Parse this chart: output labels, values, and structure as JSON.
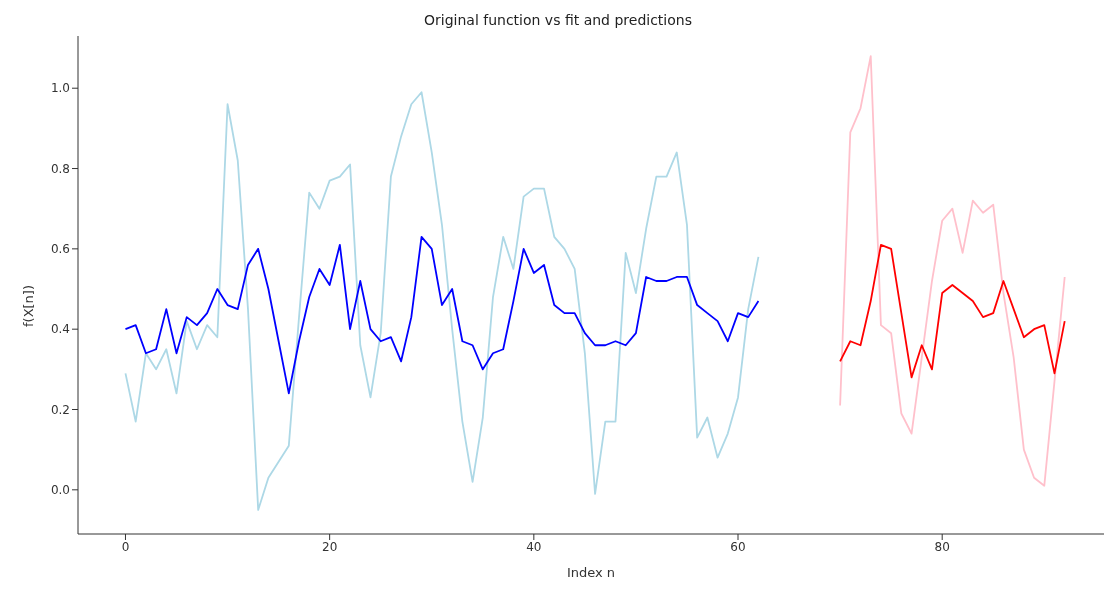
{
  "chart_data": {
    "type": "line",
    "title": "Original function vs fit and predictions",
    "xlabel": "Index n",
    "ylabel": "f(X[n])",
    "xlim": [
      -4.65,
      95.85
    ],
    "ylim": [
      -0.11,
      1.13
    ],
    "xticks": [
      0,
      20,
      40,
      60,
      80
    ],
    "yticks": [
      {
        "value": 0,
        "label": "0.0"
      },
      {
        "value": 0.2,
        "label": "0.2"
      },
      {
        "value": 0.4,
        "label": "0.4"
      },
      {
        "value": 0.6,
        "label": "0.6"
      },
      {
        "value": 0.8,
        "label": "0.8"
      },
      {
        "value": 1,
        "label": "1.0"
      }
    ],
    "grid": false,
    "legend": false,
    "marker": "none",
    "line_style": "solid",
    "series": [
      {
        "color": "#add8e6",
        "x": [
          0,
          1,
          2,
          3,
          4,
          5,
          6,
          7,
          8,
          9,
          10,
          11,
          12,
          13,
          14,
          15,
          16,
          17,
          18,
          19,
          20,
          21,
          22,
          23,
          24,
          25,
          26,
          27,
          28,
          29,
          30,
          31,
          32,
          33,
          34,
          35,
          36,
          37,
          38,
          39,
          40,
          41,
          42,
          43,
          44,
          45,
          46,
          47,
          48,
          49,
          50,
          51,
          52,
          53,
          54,
          55,
          56,
          57,
          58,
          59,
          60,
          61,
          62
        ],
        "values": [
          0.29,
          0.17,
          0.34,
          0.3,
          0.35,
          0.24,
          0.42,
          0.35,
          0.41,
          0.38,
          0.96,
          0.82,
          0.45,
          -0.05,
          0.03,
          0.07,
          0.11,
          0.43,
          0.74,
          0.7,
          0.77,
          0.78,
          0.81,
          0.36,
          0.23,
          0.39,
          0.78,
          0.88,
          0.96,
          0.99,
          0.84,
          0.66,
          0.4,
          0.17,
          0.02,
          0.18,
          0.48,
          0.63,
          0.55,
          0.73,
          0.75,
          0.75,
          0.63,
          0.6,
          0.55,
          0.34,
          -0.01,
          0.17,
          0.17,
          0.59,
          0.49,
          0.65,
          0.78,
          0.78,
          0.84,
          0.66,
          0.13,
          0.18,
          0.08,
          0.14,
          0.23,
          0.45,
          0.58
        ]
      },
      {
        "color": "#0000ff",
        "x": [
          0,
          1,
          2,
          3,
          4,
          5,
          6,
          7,
          8,
          9,
          10,
          11,
          12,
          13,
          14,
          15,
          16,
          17,
          18,
          19,
          20,
          21,
          22,
          23,
          24,
          25,
          26,
          27,
          28,
          29,
          30,
          31,
          32,
          33,
          34,
          35,
          36,
          37,
          38,
          39,
          40,
          41,
          42,
          43,
          44,
          45,
          46,
          47,
          48,
          49,
          50,
          51,
          52,
          53,
          54,
          55,
          56,
          57,
          58,
          59,
          60,
          61,
          62
        ],
        "values": [
          0.4,
          0.41,
          0.34,
          0.35,
          0.45,
          0.34,
          0.43,
          0.41,
          0.44,
          0.5,
          0.46,
          0.45,
          0.56,
          0.6,
          0.5,
          0.37,
          0.24,
          0.37,
          0.48,
          0.55,
          0.51,
          0.61,
          0.4,
          0.52,
          0.4,
          0.37,
          0.38,
          0.32,
          0.43,
          0.63,
          0.6,
          0.46,
          0.5,
          0.37,
          0.36,
          0.3,
          0.34,
          0.35,
          0.47,
          0.6,
          0.54,
          0.56,
          0.46,
          0.44,
          0.44,
          0.39,
          0.36,
          0.36,
          0.37,
          0.36,
          0.39,
          0.53,
          0.52,
          0.52,
          0.53,
          0.53,
          0.46,
          0.44,
          0.42,
          0.37,
          0.44,
          0.43,
          0.47
        ]
      },
      {
        "color": "#ffc0cb",
        "x": [
          70,
          71,
          72,
          73,
          74,
          75,
          76,
          77,
          78,
          79,
          80,
          81,
          82,
          83,
          84,
          85,
          86,
          87,
          88,
          89,
          90,
          91,
          92
        ],
        "values": [
          0.21,
          0.89,
          0.95,
          1.08,
          0.41,
          0.39,
          0.19,
          0.14,
          0.33,
          0.52,
          0.67,
          0.7,
          0.59,
          0.72,
          0.69,
          0.71,
          0.49,
          0.33,
          0.1,
          0.03,
          0.01,
          0.27,
          0.53
        ]
      },
      {
        "color": "#ff0000",
        "x": [
          70,
          71,
          72,
          73,
          74,
          75,
          76,
          77,
          78,
          79,
          80,
          81,
          82,
          83,
          84,
          85,
          86,
          87,
          88,
          89,
          90,
          91,
          92
        ],
        "values": [
          0.32,
          0.37,
          0.36,
          0.47,
          0.61,
          0.6,
          0.44,
          0.28,
          0.36,
          0.3,
          0.49,
          0.51,
          0.49,
          0.47,
          0.43,
          0.44,
          0.52,
          0.45,
          0.38,
          0.4,
          0.41,
          0.29,
          0.42
        ]
      }
    ]
  }
}
